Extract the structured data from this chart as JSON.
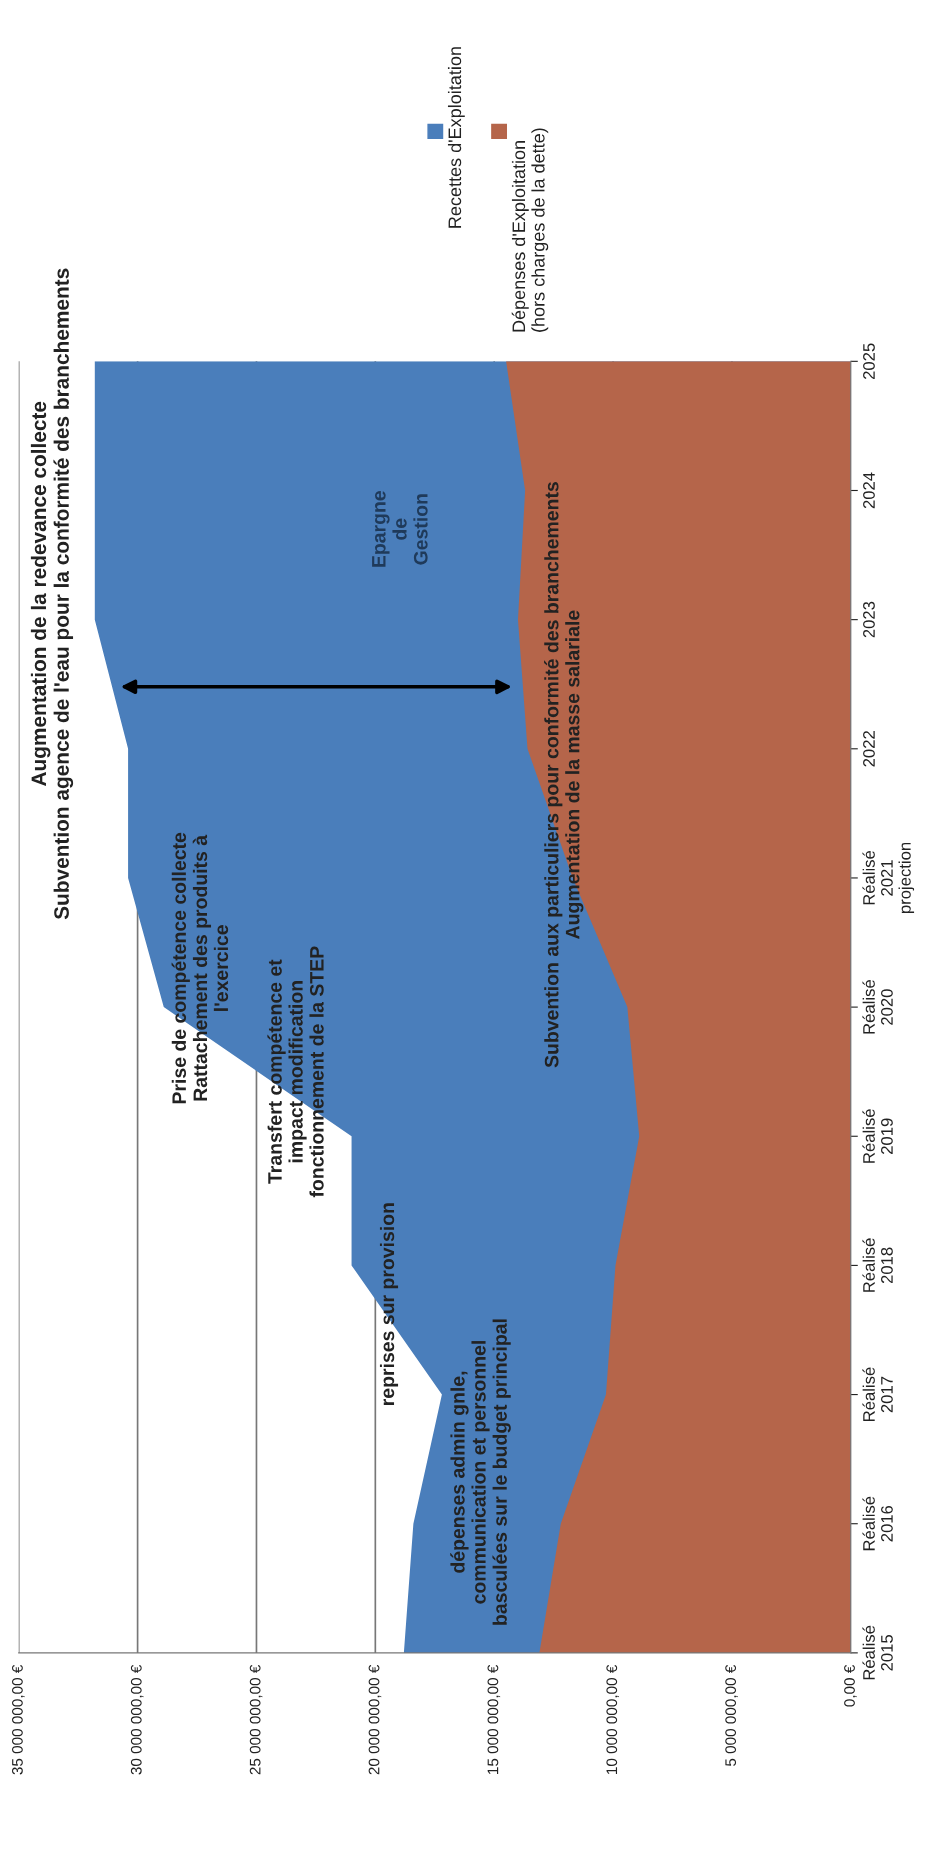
{
  "chart_data": {
    "type": "area",
    "orientation": "horizontal",
    "categories": [
      "2025",
      "2024",
      "2023",
      "2022",
      "Réalisé\n2021\nprojection",
      "Réalisé\n2020",
      "Réalisé\n2019",
      "Réalisé\n2018",
      "Réalisé\n2017",
      "Réalisé\n2016",
      "Réalisé\n2015"
    ],
    "series": [
      {
        "name": "Recettes d'Exploitation",
        "color": "#4a7ebb",
        "values": [
          31800000,
          31800000,
          31800000,
          30400000,
          30400000,
          28900000,
          21000000,
          21000000,
          17200000,
          18400000,
          18800000
        ]
      },
      {
        "name": "Dépenses d'Exploitation\n(hors charges de la dette)",
        "color": "#b5654a",
        "values": [
          14500000,
          13700000,
          14000000,
          13600000,
          11700000,
          9400000,
          8900000,
          9900000,
          10300000,
          12200000,
          13100000
        ]
      }
    ],
    "xlim": [
      35000000,
      0
    ],
    "xticks": [
      {
        "value": 35000000,
        "label": "35 000 000,00 €"
      },
      {
        "value": 30000000,
        "label": "30 000 000,00 €"
      },
      {
        "value": 25000000,
        "label": "25 000 000,00 €"
      },
      {
        "value": 20000000,
        "label": "20 000 000,00 €"
      },
      {
        "value": 15000000,
        "label": "15 000 000,00 €"
      },
      {
        "value": 10000000,
        "label": "10 000 000,00 €"
      },
      {
        "value": 5000000,
        "label": "5 000 000,00 €"
      },
      {
        "value": 0,
        "label": "0,00 €"
      }
    ],
    "grid": "x",
    "legend": "top",
    "annotations": [
      "Augmentation de la redevance collecte\nSubvention agence de l'eau pour la conformité des branchements",
      "Epargne\nde\nGestion",
      "Prise de compétence collecte\nRattachement des produits à\nl'exercice",
      "Transfert compétence et\nimpact modification\nfonctionnement de la STEP",
      "reprises sur provision",
      "dépenses admin gnle,\ncommunication et personnel\nbasculées sur le budget principal",
      "Subvention aux particuliers pour conformité des branchements\nAugmentation de la masse salariale"
    ]
  }
}
